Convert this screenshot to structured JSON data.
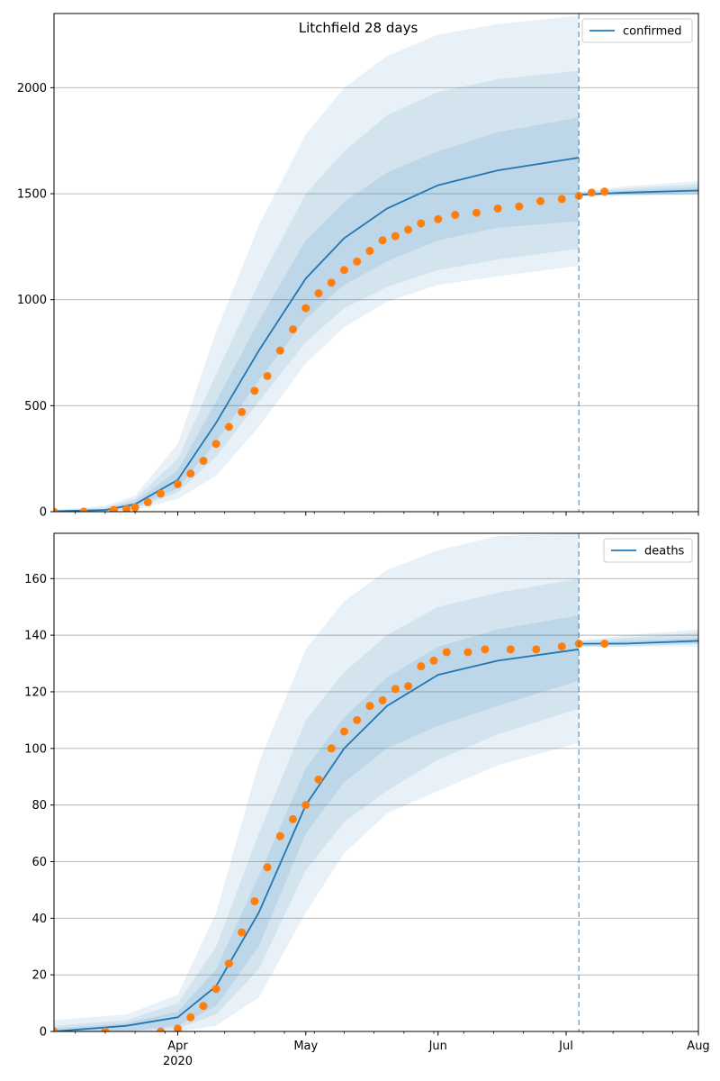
{
  "figure": {
    "title": "Litchfield 28 days"
  },
  "colors": {
    "model": "#1f77b4",
    "observed": "#ff7f0e",
    "grid": "#b0b0b0",
    "band": "#1f77b4"
  },
  "chart_data": [
    {
      "type": "line",
      "title": "Litchfield 28 days",
      "series_name": "confirmed",
      "legend_position": "top-right",
      "grid": "horizontal",
      "x_range": [
        "2020-03-03",
        "2020-08-01"
      ],
      "x_ticks": [
        {
          "date": "2020-04-01",
          "label": "Apr",
          "sublabel": "2020"
        },
        {
          "date": "2020-05-01",
          "label": "May",
          "sublabel": ""
        },
        {
          "date": "2020-06-01",
          "label": "Jun",
          "sublabel": ""
        },
        {
          "date": "2020-07-01",
          "label": "Jul",
          "sublabel": ""
        },
        {
          "date": "2020-08-01",
          "label": "Aug",
          "sublabel": ""
        }
      ],
      "ylim": [
        0,
        2350
      ],
      "y_ticks": [
        0,
        500,
        1000,
        1500,
        2000
      ],
      "forecast_start": "2020-07-04",
      "model": [
        {
          "date": "2020-03-03",
          "p2_5": 0,
          "p10": 0,
          "p25": 0,
          "median": 2,
          "p75": 4,
          "p90": 6,
          "p97_5": 8
        },
        {
          "date": "2020-03-15",
          "p2_5": 0,
          "p10": 2,
          "p25": 4,
          "median": 8,
          "p75": 14,
          "p90": 20,
          "p97_5": 28
        },
        {
          "date": "2020-03-22",
          "p2_5": 8,
          "p10": 15,
          "p25": 22,
          "median": 35,
          "p75": 48,
          "p90": 60,
          "p97_5": 75
        },
        {
          "date": "2020-04-01",
          "p2_5": 60,
          "p10": 90,
          "p25": 110,
          "median": 150,
          "p75": 195,
          "p90": 250,
          "p97_5": 320
        },
        {
          "date": "2020-04-10",
          "p2_5": 170,
          "p10": 260,
          "p25": 330,
          "median": 420,
          "p75": 520,
          "p90": 650,
          "p97_5": 850
        },
        {
          "date": "2020-04-20",
          "p2_5": 400,
          "p10": 520,
          "p25": 620,
          "median": 760,
          "p75": 900,
          "p90": 1080,
          "p97_5": 1350
        },
        {
          "date": "2020-05-01",
          "p2_5": 700,
          "p10": 800,
          "p25": 910,
          "median": 1100,
          "p75": 1280,
          "p90": 1500,
          "p97_5": 1780
        },
        {
          "date": "2020-05-10",
          "p2_5": 870,
          "p10": 960,
          "p25": 1070,
          "median": 1290,
          "p75": 1460,
          "p90": 1700,
          "p97_5": 2000
        },
        {
          "date": "2020-05-20",
          "p2_5": 990,
          "p10": 1060,
          "p25": 1180,
          "median": 1430,
          "p75": 1600,
          "p90": 1870,
          "p97_5": 2150
        },
        {
          "date": "2020-06-01",
          "p2_5": 1070,
          "p10": 1140,
          "p25": 1280,
          "median": 1540,
          "p75": 1700,
          "p90": 1980,
          "p97_5": 2250
        },
        {
          "date": "2020-06-15",
          "p2_5": 1110,
          "p10": 1190,
          "p25": 1340,
          "median": 1610,
          "p75": 1790,
          "p90": 2040,
          "p97_5": 2300
        },
        {
          "date": "2020-07-04",
          "p2_5": 1160,
          "p10": 1240,
          "p25": 1370,
          "median": 1670,
          "p75": 1860,
          "p90": 2080,
          "p97_5": 2340
        }
      ],
      "forecast": [
        {
          "date": "2020-07-04",
          "p2_5": 1485,
          "p10": 1490,
          "p25": 1495,
          "median": 1495,
          "p75": 1500,
          "p90": 1505,
          "p97_5": 1510
        },
        {
          "date": "2020-07-15",
          "p2_5": 1490,
          "p10": 1495,
          "p25": 1500,
          "median": 1505,
          "p75": 1515,
          "p90": 1525,
          "p97_5": 1535
        },
        {
          "date": "2020-08-01",
          "p2_5": 1495,
          "p10": 1500,
          "p25": 1505,
          "median": 1515,
          "p75": 1530,
          "p90": 1545,
          "p97_5": 1560
        }
      ],
      "observed": [
        [
          "2020-03-03",
          0
        ],
        [
          "2020-03-10",
          0
        ],
        [
          "2020-03-17",
          8
        ],
        [
          "2020-03-20",
          12
        ],
        [
          "2020-03-22",
          20
        ],
        [
          "2020-03-25",
          45
        ],
        [
          "2020-03-28",
          85
        ],
        [
          "2020-04-01",
          130
        ],
        [
          "2020-04-04",
          180
        ],
        [
          "2020-04-07",
          240
        ],
        [
          "2020-04-10",
          320
        ],
        [
          "2020-04-13",
          400
        ],
        [
          "2020-04-16",
          470
        ],
        [
          "2020-04-19",
          570
        ],
        [
          "2020-04-22",
          640
        ],
        [
          "2020-04-25",
          760
        ],
        [
          "2020-04-28",
          860
        ],
        [
          "2020-05-01",
          960
        ],
        [
          "2020-05-04",
          1030
        ],
        [
          "2020-05-07",
          1080
        ],
        [
          "2020-05-10",
          1140
        ],
        [
          "2020-05-13",
          1180
        ],
        [
          "2020-05-16",
          1230
        ],
        [
          "2020-05-19",
          1280
        ],
        [
          "2020-05-22",
          1300
        ],
        [
          "2020-05-25",
          1330
        ],
        [
          "2020-05-28",
          1360
        ],
        [
          "2020-06-01",
          1380
        ],
        [
          "2020-06-05",
          1400
        ],
        [
          "2020-06-10",
          1410
        ],
        [
          "2020-06-15",
          1430
        ],
        [
          "2020-06-20",
          1440
        ],
        [
          "2020-06-25",
          1465
        ],
        [
          "2020-06-30",
          1475
        ],
        [
          "2020-07-04",
          1490
        ],
        [
          "2020-07-07",
          1505
        ],
        [
          "2020-07-10",
          1510
        ]
      ]
    },
    {
      "type": "line",
      "series_name": "deaths",
      "legend_position": "top-right",
      "grid": "horizontal",
      "x_range": [
        "2020-03-03",
        "2020-08-01"
      ],
      "x_ticks": [
        {
          "date": "2020-04-01",
          "label": "Apr",
          "sublabel": "2020"
        },
        {
          "date": "2020-05-01",
          "label": "May",
          "sublabel": ""
        },
        {
          "date": "2020-06-01",
          "label": "Jun",
          "sublabel": ""
        },
        {
          "date": "2020-07-01",
          "label": "Jul",
          "sublabel": ""
        },
        {
          "date": "2020-08-01",
          "label": "Aug",
          "sublabel": ""
        }
      ],
      "ylim": [
        0,
        176
      ],
      "y_ticks": [
        0,
        20,
        40,
        60,
        80,
        100,
        120,
        140,
        160
      ],
      "forecast_start": "2020-07-04",
      "model": [
        {
          "date": "2020-03-03",
          "p2_5": 0,
          "p10": 0,
          "p25": 0,
          "median": 0,
          "p75": 1,
          "p90": 2,
          "p97_5": 4
        },
        {
          "date": "2020-03-20",
          "p2_5": 0,
          "p10": 0,
          "p25": 0,
          "median": 2,
          "p75": 3,
          "p90": 4,
          "p97_5": 6
        },
        {
          "date": "2020-04-01",
          "p2_5": 0,
          "p10": 1,
          "p25": 2,
          "median": 5,
          "p75": 7,
          "p90": 10,
          "p97_5": 13
        },
        {
          "date": "2020-04-10",
          "p2_5": 2,
          "p10": 6,
          "p25": 9,
          "median": 16,
          "p75": 22,
          "p90": 30,
          "p97_5": 42
        },
        {
          "date": "2020-04-20",
          "p2_5": 12,
          "p10": 22,
          "p25": 30,
          "median": 42,
          "p75": 55,
          "p90": 70,
          "p97_5": 95
        },
        {
          "date": "2020-05-01",
          "p2_5": 42,
          "p10": 57,
          "p25": 70,
          "median": 80,
          "p75": 93,
          "p90": 110,
          "p97_5": 135
        },
        {
          "date": "2020-05-10",
          "p2_5": 63,
          "p10": 74,
          "p25": 88,
          "median": 100,
          "p75": 111,
          "p90": 127,
          "p97_5": 152
        },
        {
          "date": "2020-05-20",
          "p2_5": 77,
          "p10": 85,
          "p25": 100,
          "median": 115,
          "p75": 125,
          "p90": 140,
          "p97_5": 163
        },
        {
          "date": "2020-06-01",
          "p2_5": 85,
          "p10": 96,
          "p25": 108,
          "median": 126,
          "p75": 136,
          "p90": 150,
          "p97_5": 170
        },
        {
          "date": "2020-06-15",
          "p2_5": 94,
          "p10": 105,
          "p25": 115,
          "median": 131,
          "p75": 142,
          "p90": 155,
          "p97_5": 175
        },
        {
          "date": "2020-07-04",
          "p2_5": 102,
          "p10": 114,
          "p25": 124,
          "median": 135,
          "p75": 147,
          "p90": 160,
          "p97_5": 176
        }
      ],
      "forecast": [
        {
          "date": "2020-07-04",
          "p2_5": 136,
          "p10": 136,
          "p25": 136,
          "median": 137,
          "p75": 137,
          "p90": 138,
          "p97_5": 138
        },
        {
          "date": "2020-07-15",
          "p2_5": 136,
          "p10": 136,
          "p25": 137,
          "median": 137,
          "p75": 138,
          "p90": 139,
          "p97_5": 140
        },
        {
          "date": "2020-08-01",
          "p2_5": 136,
          "p10": 137,
          "p25": 137,
          "median": 138,
          "p75": 139,
          "p90": 141,
          "p97_5": 142
        }
      ],
      "observed": [
        [
          "2020-03-03",
          0
        ],
        [
          "2020-03-15",
          0
        ],
        [
          "2020-03-28",
          0
        ],
        [
          "2020-04-01",
          1
        ],
        [
          "2020-04-04",
          5
        ],
        [
          "2020-04-07",
          9
        ],
        [
          "2020-04-10",
          15
        ],
        [
          "2020-04-13",
          24
        ],
        [
          "2020-04-16",
          35
        ],
        [
          "2020-04-19",
          46
        ],
        [
          "2020-04-22",
          58
        ],
        [
          "2020-04-25",
          69
        ],
        [
          "2020-04-28",
          75
        ],
        [
          "2020-05-01",
          80
        ],
        [
          "2020-05-04",
          89
        ],
        [
          "2020-05-07",
          100
        ],
        [
          "2020-05-10",
          106
        ],
        [
          "2020-05-13",
          110
        ],
        [
          "2020-05-16",
          115
        ],
        [
          "2020-05-19",
          117
        ],
        [
          "2020-05-22",
          121
        ],
        [
          "2020-05-25",
          122
        ],
        [
          "2020-05-28",
          129
        ],
        [
          "2020-05-31",
          131
        ],
        [
          "2020-06-03",
          134
        ],
        [
          "2020-06-08",
          134
        ],
        [
          "2020-06-12",
          135
        ],
        [
          "2020-06-18",
          135
        ],
        [
          "2020-06-24",
          135
        ],
        [
          "2020-06-30",
          136
        ],
        [
          "2020-07-04",
          137
        ],
        [
          "2020-07-10",
          137
        ]
      ]
    }
  ]
}
